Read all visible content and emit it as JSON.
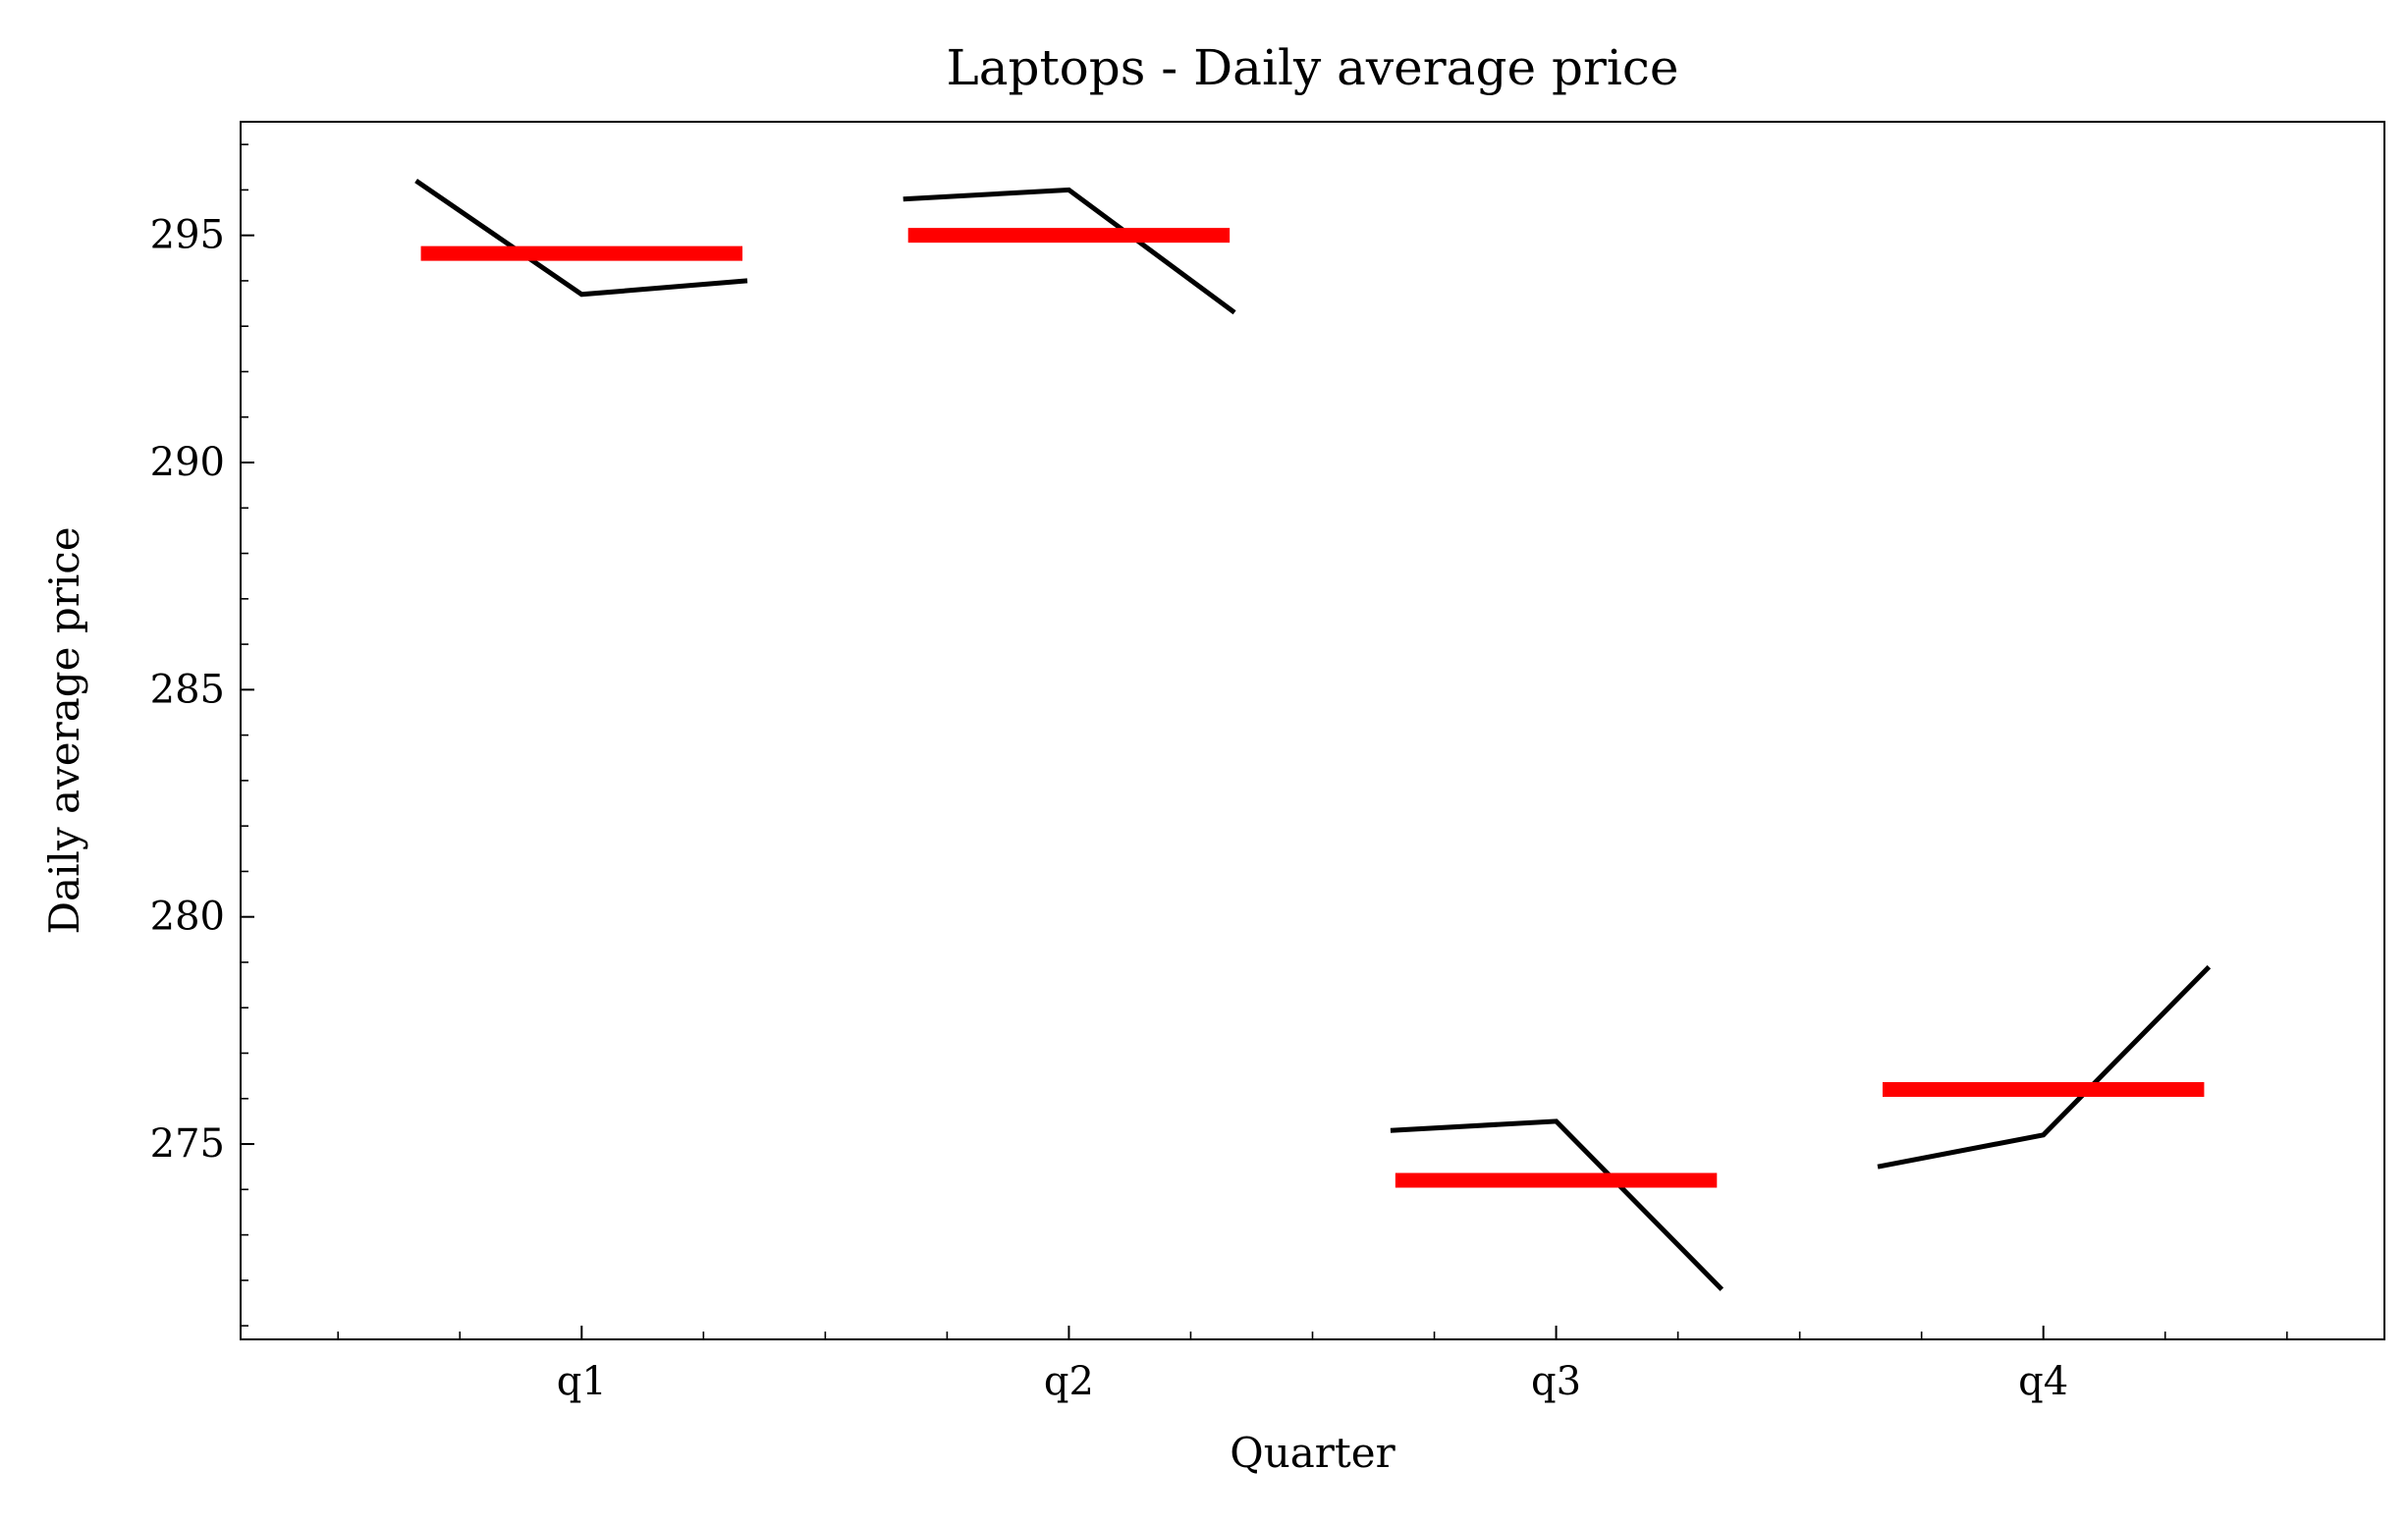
{
  "chart_data": {
    "type": "line",
    "title": "Laptops - Daily average price",
    "xlabel": "Quarter",
    "ylabel": "Daily average price",
    "categories": [
      "q1",
      "q2",
      "q3",
      "q4"
    ],
    "ylim": [
      270.7,
      297.5
    ],
    "yticks": [
      275,
      280,
      285,
      290,
      295
    ],
    "ytick_labels": [
      "275",
      "280",
      "285",
      "290",
      "295"
    ],
    "grid": false,
    "series": [
      {
        "kind": "subseries",
        "color": "#000000",
        "groups": [
          {
            "category": "q1",
            "x": [
              -0.34,
              0.0,
              0.34
            ],
            "values": [
              296.2,
              293.7,
              294.0
            ]
          },
          {
            "category": "q2",
            "x": [
              -0.34,
              0.0,
              0.34
            ],
            "values": [
              295.8,
              296.0,
              293.3
            ]
          },
          {
            "category": "q3",
            "x": [
              -0.34,
              0.0,
              0.34
            ],
            "values": [
              275.3,
              275.5,
              271.8
            ]
          },
          {
            "category": "q4",
            "x": [
              -0.34,
              0.0,
              0.34
            ],
            "values": [
              274.5,
              275.2,
              278.9
            ]
          }
        ]
      },
      {
        "kind": "mean",
        "color": "#ff0000",
        "values": [
          294.6,
          295.0,
          274.2,
          276.2
        ]
      }
    ]
  }
}
